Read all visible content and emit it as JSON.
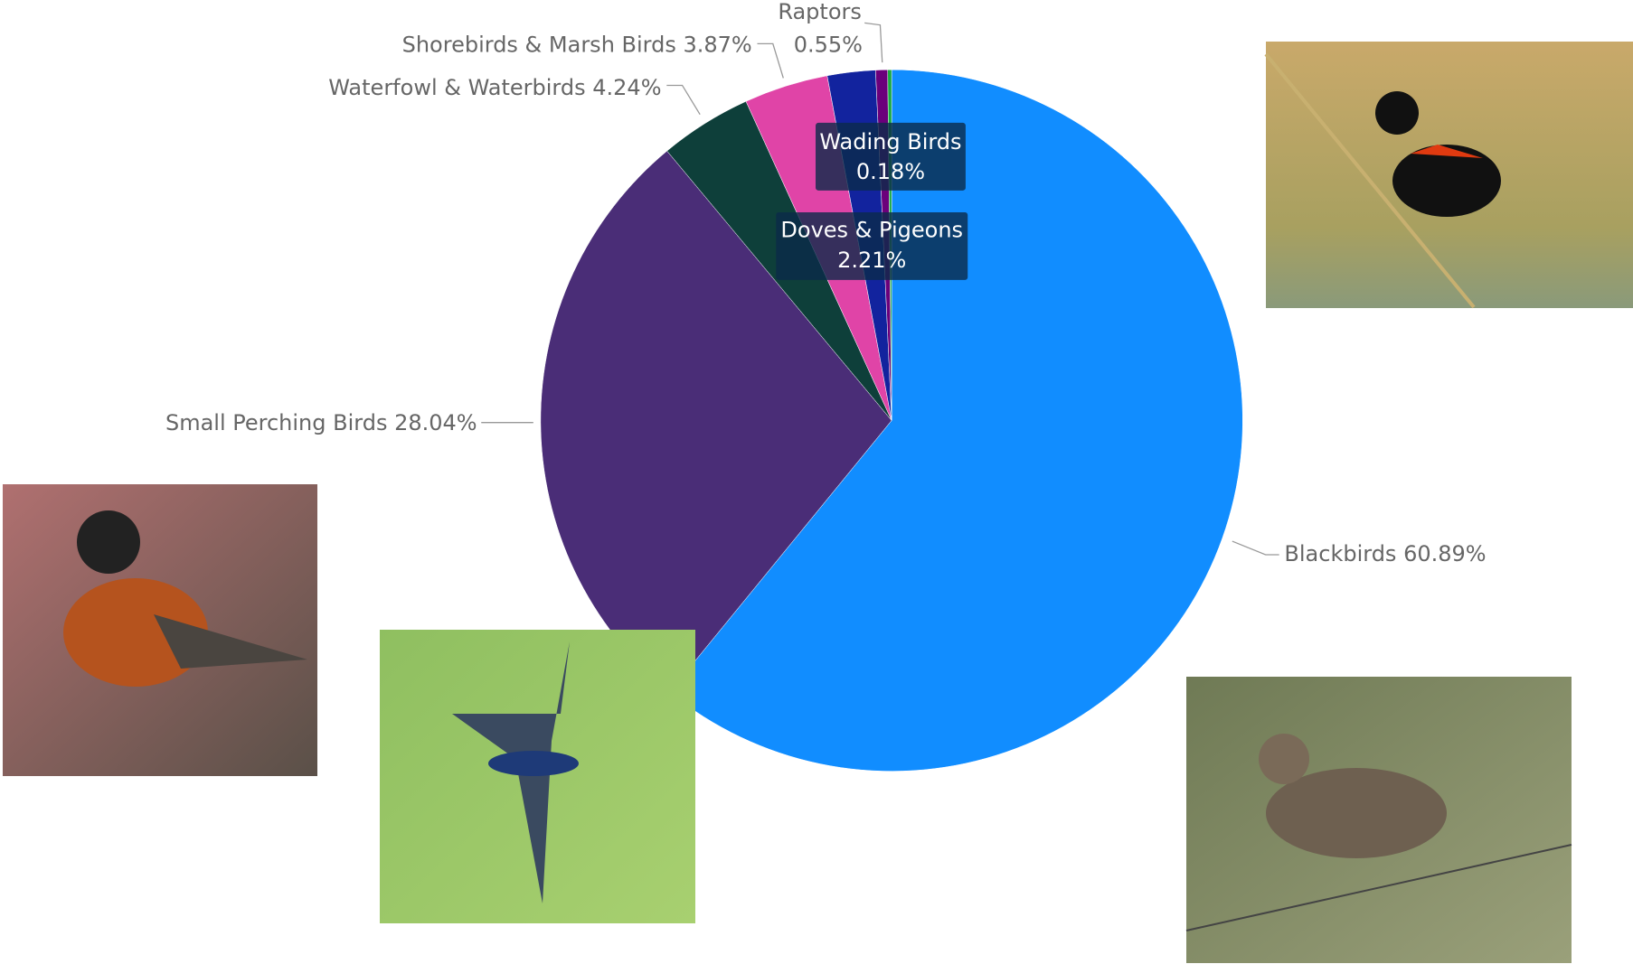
{
  "chart_data": {
    "type": "pie",
    "categories": [
      "Blackbirds",
      "Small Perching Birds",
      "Waterfowl & Waterbirds",
      "Shorebirds & Marsh Birds",
      "Doves & Pigeons",
      "Raptors",
      "Wading Birds"
    ],
    "values": [
      60.89,
      28.04,
      4.24,
      3.87,
      2.21,
      0.55,
      0.18
    ],
    "value_labels": [
      "60.89%",
      "28.04%",
      "4.24%",
      "3.87%",
      "2.21%",
      "0.55%",
      "0.18%"
    ],
    "colors": [
      "#118DFF",
      "#4A2D77",
      "#0E3F3A",
      "#E044A7",
      "#12239E",
      "#6B007B",
      "#1AAB40"
    ]
  }
}
